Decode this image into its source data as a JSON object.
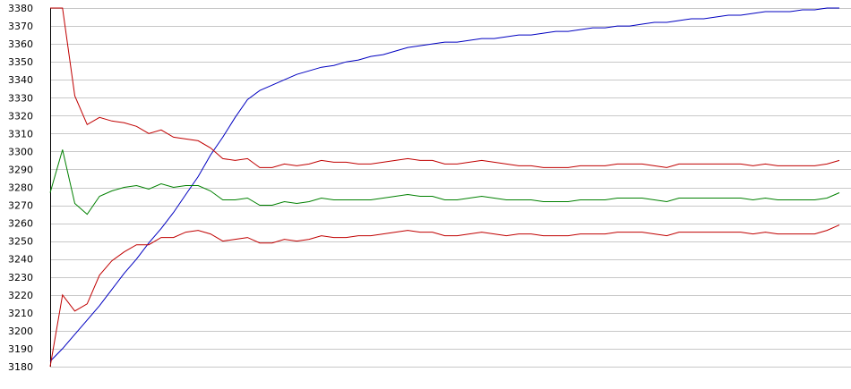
{
  "chart_data": {
    "type": "line",
    "title": "",
    "xlabel": "",
    "ylabel": "",
    "ylim": [
      3180,
      3380
    ],
    "yticks": [
      3180,
      3190,
      3200,
      3210,
      3220,
      3230,
      3240,
      3250,
      3260,
      3270,
      3280,
      3290,
      3300,
      3310,
      3320,
      3330,
      3340,
      3350,
      3360,
      3370,
      3380
    ],
    "grid": "horizontal",
    "legend": "none",
    "x": [
      0,
      1,
      2,
      3,
      4,
      5,
      6,
      7,
      8,
      9,
      10,
      11,
      12,
      13,
      14,
      15,
      16,
      17,
      18,
      19,
      20,
      21,
      22,
      23,
      24,
      25,
      26,
      27,
      28,
      29,
      30,
      31,
      32,
      33,
      34,
      35,
      36,
      37,
      38,
      39,
      40,
      41,
      42,
      43,
      44,
      45,
      46,
      47,
      48,
      49,
      50,
      51,
      52,
      53,
      54,
      55,
      56,
      57,
      58,
      59,
      60,
      61,
      62,
      63,
      64
    ],
    "series": [
      {
        "color": "#0000c0",
        "values": [
          3183,
          3190,
          3198,
          3206,
          3214,
          3223,
          3232,
          3240,
          3249,
          3257,
          3266,
          3276,
          3286,
          3298,
          3308,
          3319,
          3329,
          3334,
          3337,
          3340,
          3343,
          3345,
          3347,
          3348,
          3350,
          3351,
          3353,
          3354,
          3356,
          3358,
          3359,
          3360,
          3361,
          3361,
          3362,
          3363,
          3363,
          3364,
          3365,
          3365,
          3366,
          3367,
          3367,
          3368,
          3369,
          3369,
          3370,
          3370,
          3371,
          3372,
          3372,
          3373,
          3374,
          3374,
          3375,
          3376,
          3376,
          3377,
          3378,
          3378,
          3378,
          3379,
          3379,
          3380,
          3380
        ]
      },
      {
        "color": "#c00000",
        "values": [
          3380,
          3380,
          3331,
          3315,
          3319,
          3317,
          3316,
          3314,
          3310,
          3312,
          3308,
          3307,
          3306,
          3302,
          3296,
          3295,
          3296,
          3291,
          3291,
          3293,
          3292,
          3293,
          3295,
          3294,
          3294,
          3293,
          3293,
          3294,
          3295,
          3296,
          3295,
          3295,
          3293,
          3293,
          3294,
          3295,
          3294,
          3293,
          3292,
          3292,
          3291,
          3291,
          3291,
          3292,
          3292,
          3292,
          3293,
          3293,
          3293,
          3292,
          3291,
          3293,
          3293,
          3293,
          3293,
          3293,
          3293,
          3292,
          3293,
          3292,
          3292,
          3292,
          3292,
          3293,
          3295
        ]
      },
      {
        "color": "#008000",
        "values": [
          3277,
          3301,
          3271,
          3265,
          3275,
          3278,
          3280,
          3281,
          3279,
          3282,
          3280,
          3281,
          3281,
          3278,
          3273,
          3273,
          3274,
          3270,
          3270,
          3272,
          3271,
          3272,
          3274,
          3273,
          3273,
          3273,
          3273,
          3274,
          3275,
          3276,
          3275,
          3275,
          3273,
          3273,
          3274,
          3275,
          3274,
          3273,
          3273,
          3273,
          3272,
          3272,
          3272,
          3273,
          3273,
          3273,
          3274,
          3274,
          3274,
          3273,
          3272,
          3274,
          3274,
          3274,
          3274,
          3274,
          3274,
          3273,
          3274,
          3273,
          3273,
          3273,
          3273,
          3274,
          3277
        ]
      },
      {
        "color": "#c00000",
        "values": [
          3180,
          3220,
          3211,
          3215,
          3231,
          3239,
          3244,
          3248,
          3248,
          3252,
          3252,
          3255,
          3256,
          3254,
          3250,
          3251,
          3252,
          3249,
          3249,
          3251,
          3250,
          3251,
          3253,
          3252,
          3252,
          3253,
          3253,
          3254,
          3255,
          3256,
          3255,
          3255,
          3253,
          3253,
          3254,
          3255,
          3254,
          3253,
          3254,
          3254,
          3253,
          3253,
          3253,
          3254,
          3254,
          3254,
          3255,
          3255,
          3255,
          3254,
          3253,
          3255,
          3255,
          3255,
          3255,
          3255,
          3255,
          3254,
          3255,
          3254,
          3254,
          3254,
          3254,
          3256,
          3259
        ]
      }
    ]
  }
}
